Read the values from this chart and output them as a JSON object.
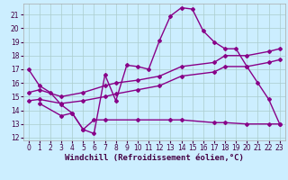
{
  "xlabel": "Windchill (Refroidissement éolien,°C)",
  "bg_color": "#cceeff",
  "grid_color": "#aacccc",
  "line_color": "#880088",
  "xlim": [
    -0.5,
    23.5
  ],
  "ylim": [
    11.8,
    21.8
  ],
  "xticks": [
    0,
    1,
    2,
    3,
    4,
    5,
    6,
    7,
    8,
    9,
    10,
    11,
    12,
    13,
    14,
    15,
    16,
    17,
    18,
    19,
    20,
    21,
    22,
    23
  ],
  "yticks": [
    12,
    13,
    14,
    15,
    16,
    17,
    18,
    19,
    20,
    21
  ],
  "line1_x": [
    0,
    1,
    2,
    3,
    4,
    5,
    6,
    7,
    8,
    9,
    10,
    11,
    12,
    13,
    14,
    15,
    16,
    17,
    18,
    19,
    20,
    21,
    22,
    23
  ],
  "line1_y": [
    17.0,
    15.8,
    15.3,
    14.4,
    13.8,
    12.6,
    12.3,
    16.6,
    14.7,
    17.3,
    17.2,
    17.0,
    19.1,
    20.9,
    21.5,
    21.4,
    19.8,
    19.0,
    18.5,
    18.5,
    17.2,
    16.0,
    14.8,
    13.0
  ],
  "line2_x": [
    0,
    1,
    3,
    5,
    7,
    8,
    10,
    12,
    14,
    17,
    18,
    20,
    22,
    23
  ],
  "line2_y": [
    15.3,
    15.5,
    15.0,
    15.3,
    15.8,
    16.0,
    16.2,
    16.5,
    17.2,
    17.5,
    18.0,
    18.0,
    18.3,
    18.5
  ],
  "line3_x": [
    0,
    1,
    3,
    5,
    7,
    8,
    10,
    12,
    14,
    17,
    18,
    20,
    22,
    23
  ],
  "line3_y": [
    14.7,
    14.8,
    14.5,
    14.7,
    15.0,
    15.2,
    15.5,
    15.8,
    16.5,
    16.8,
    17.2,
    17.2,
    17.5,
    17.7
  ],
  "line4_x": [
    1,
    3,
    4,
    5,
    6,
    7,
    10,
    13,
    14,
    17,
    18,
    20,
    22,
    23
  ],
  "line4_y": [
    14.5,
    13.6,
    13.8,
    12.6,
    13.3,
    13.3,
    13.3,
    13.3,
    13.3,
    13.1,
    13.1,
    13.0,
    13.0,
    13.0
  ],
  "marker": "D",
  "marker_size": 2,
  "line_width": 1.0,
  "font_size_ticks": 5.5,
  "font_size_label": 6.5
}
